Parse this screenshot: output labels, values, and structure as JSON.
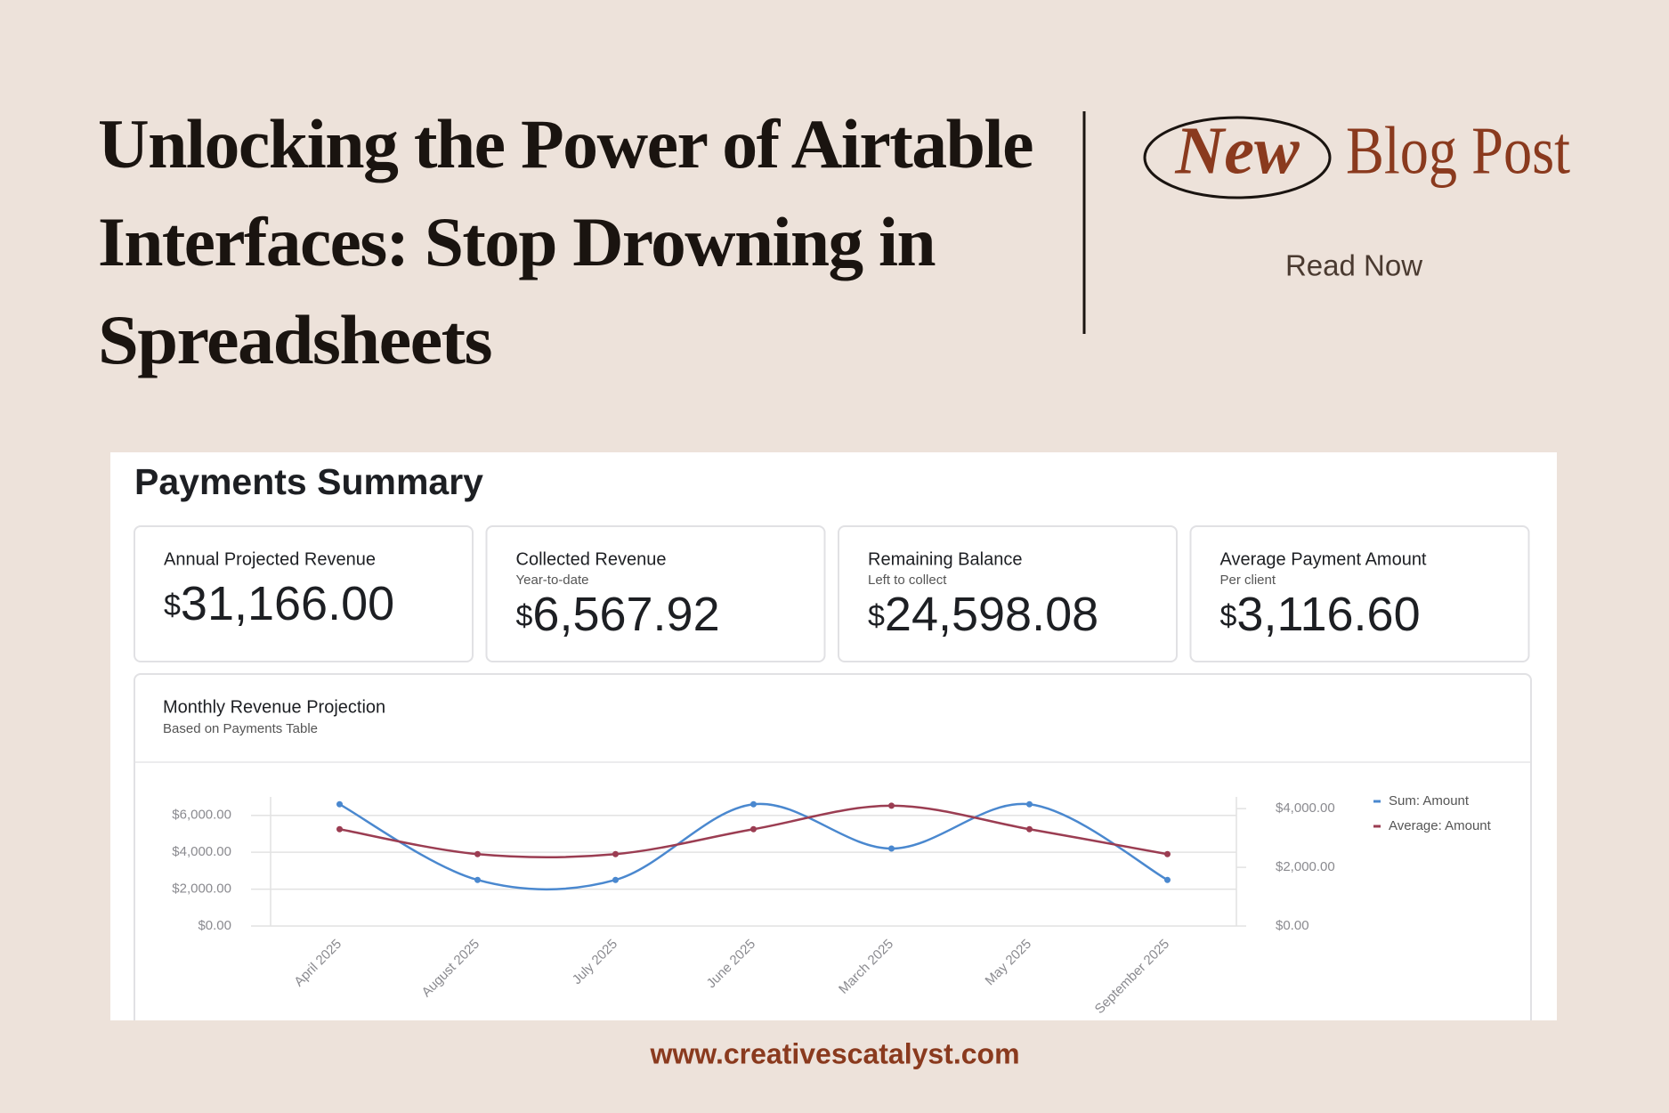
{
  "header": {
    "title_lines": [
      "Unlocking the Power of Airtable",
      "Interfaces: Stop Drowning in",
      "Spreadsheets"
    ],
    "badge": "New",
    "label": "Blog Post",
    "cta": "Read Now"
  },
  "dashboard": {
    "title": "Payments Summary",
    "cards": [
      {
        "label": "Annual Projected Revenue",
        "currency": "$",
        "value": "31,166.00"
      },
      {
        "label": "Collected Revenue",
        "sublabel": "Year-to-date",
        "currency": "$",
        "value": "6,567.92"
      },
      {
        "label": "Remaining Balance",
        "sublabel": "Left to collect",
        "currency": "$",
        "value": "24,598.08"
      },
      {
        "label": "Average Payment Amount",
        "sublabel": "Per client",
        "currency": "$",
        "value": "3,116.60"
      }
    ]
  },
  "chart_data": {
    "type": "line",
    "title": "Monthly Revenue Projection",
    "subtitle": "Based on Payments Table",
    "categories": [
      "April 2025",
      "August 2025",
      "July 2025",
      "June 2025",
      "March 2025",
      "May 2025",
      "September 2025"
    ],
    "series": [
      {
        "name": "Sum: Amount",
        "color": "#4a88cf",
        "values": [
          6600,
          2500,
          2500,
          6600,
          4200,
          6600,
          2500
        ]
      },
      {
        "name": "Average: Amount",
        "color": "#9b3d52",
        "axis": "y2",
        "values": [
          3300,
          2450,
          2450,
          3300,
          4100,
          3300,
          2450
        ]
      }
    ],
    "ylim": [
      0,
      7000
    ],
    "yticks": [
      {
        "value": 0,
        "label": "$0.00"
      },
      {
        "value": 2000,
        "label": "$2,000.00"
      },
      {
        "value": 4000,
        "label": "$4,000.00"
      },
      {
        "value": 6000,
        "label": "$6,000.00"
      }
    ],
    "y2lim": [
      0,
      4400
    ],
    "y2ticks": [
      {
        "value": 0,
        "label": "$0.00"
      },
      {
        "value": 2000,
        "label": "$2,000.00"
      },
      {
        "value": 4000,
        "label": "$4,000.00"
      }
    ],
    "grid": true,
    "legend": "right"
  },
  "footer": {
    "url": "www.creativescatalyst.com"
  }
}
